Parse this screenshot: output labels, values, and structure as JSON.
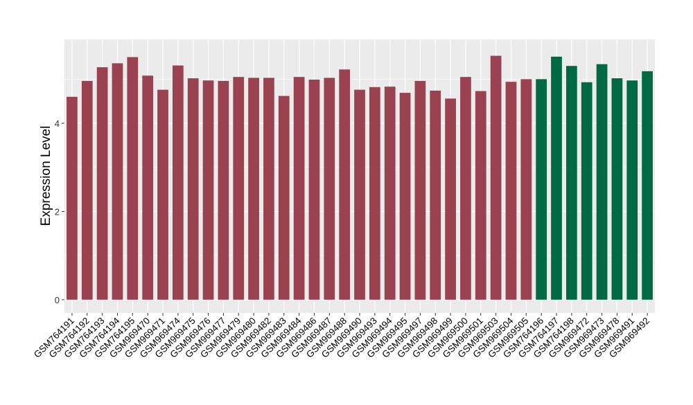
{
  "chart_data": {
    "type": "bar",
    "title": "",
    "xlabel": "",
    "ylabel": "Expression Level",
    "ylim": [
      -0.3,
      5.9
    ],
    "yticks": [
      0,
      2,
      4
    ],
    "grid": true,
    "categories": [
      "GSM764191",
      "GSM764192",
      "GSM764193",
      "GSM764194",
      "GSM764195",
      "GSM969470",
      "GSM969471",
      "GSM969474",
      "GSM969475",
      "GSM969476",
      "GSM969477",
      "GSM969479",
      "GSM969480",
      "GSM969482",
      "GSM969483",
      "GSM969484",
      "GSM969486",
      "GSM969487",
      "GSM969488",
      "GSM969490",
      "GSM969493",
      "GSM969494",
      "GSM969495",
      "GSM969497",
      "GSM969498",
      "GSM969499",
      "GSM969500",
      "GSM969501",
      "GSM969503",
      "GSM969504",
      "GSM969505",
      "GSM764196",
      "GSM764197",
      "GSM764198",
      "GSM969472",
      "GSM969473",
      "GSM969478",
      "GSM969491",
      "GSM969492"
    ],
    "values": [
      4.6,
      4.96,
      5.27,
      5.36,
      5.5,
      5.08,
      4.76,
      5.31,
      5.02,
      4.97,
      4.96,
      5.05,
      5.03,
      5.03,
      4.62,
      5.05,
      4.99,
      5.03,
      5.22,
      4.76,
      4.82,
      4.83,
      4.69,
      4.96,
      4.74,
      4.56,
      5.05,
      4.73,
      5.53,
      4.94,
      5.0,
      5.0,
      5.51,
      5.3,
      4.93,
      5.34,
      5.02,
      4.97,
      5.18
    ],
    "groups": [
      0,
      0,
      0,
      0,
      0,
      0,
      0,
      0,
      0,
      0,
      0,
      0,
      0,
      0,
      0,
      0,
      0,
      0,
      0,
      0,
      0,
      0,
      0,
      0,
      0,
      0,
      0,
      0,
      0,
      0,
      0,
      1,
      1,
      1,
      1,
      1,
      1,
      1,
      1
    ],
    "group_colors": [
      "#9B4250",
      "#006A45"
    ],
    "panel_color": "#EBEBEB"
  }
}
